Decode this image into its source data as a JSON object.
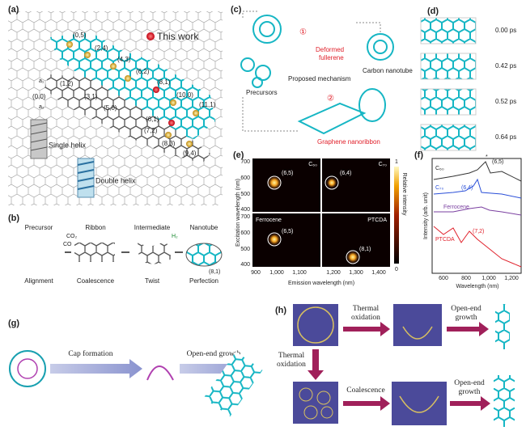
{
  "panel_a": {
    "label": "(a)",
    "legend": "This work",
    "chiralities": [
      "(0,5)",
      "(2,4)",
      "(4,3)",
      "(6,2)",
      "(8,1)",
      "(10,0)",
      "(11,1)",
      "(1,2)",
      "(3,1)",
      "(5,0)",
      "(6,1)",
      "(7,2)",
      "(8,3)",
      "(9,4)",
      "(0,0)"
    ],
    "basis": [
      "a₁",
      "a₂"
    ],
    "helix": [
      "Single helix",
      "Double helix"
    ]
  },
  "panel_b": {
    "label": "(b)",
    "stages": [
      "Precursor",
      "Ribbon",
      "Intermediate",
      "Nanotube"
    ],
    "steps": [
      "Alignment",
      "Coalescence",
      "Twist",
      "Perfection"
    ],
    "gases": [
      "CO₂",
      "CO",
      "H₂"
    ],
    "chirality": "(8,1)"
  },
  "panel_c": {
    "label": "(c)",
    "routes": [
      "①",
      "②"
    ],
    "deformed": [
      "Deformed",
      "fullerene"
    ],
    "mechanism": "Proposed mechanism",
    "precursors": "Precursors",
    "nanotube": "Carbon nanotube",
    "nanoribbon": "Graphene nanoribbon"
  },
  "panel_d": {
    "label": "(d)",
    "times": [
      "0.00 ps",
      "0.42 ps",
      "0.52 ps",
      "0.64 ps"
    ]
  },
  "panel_e": {
    "label": "(e)",
    "y_label": "Excitation wavelength (nm)",
    "x_label": "Emission wavelength (nm)",
    "colorbar_label": "Relative intensity",
    "colorbar_ticks": [
      1,
      0
    ],
    "yticks": [
      700,
      600,
      500,
      400
    ],
    "xticks": [
      "900",
      "1,000",
      "1,100",
      "1,200",
      "1,300",
      "1,400"
    ],
    "maps": [
      {
        "name": "C₆₀",
        "spot": "(6,5)"
      },
      {
        "name": "C₇₀",
        "spot": "(6,4)"
      },
      {
        "name": "Ferrocene",
        "spot": "(6,5)"
      },
      {
        "name": "PTCDA",
        "spot": "(8,1)"
      }
    ]
  },
  "panel_f": {
    "label": "(f)",
    "y_label": "Intensity (arb. unit)",
    "x_label": "Wavelength (nm)",
    "xticks": [
      "600",
      "800",
      "1,000",
      "1,200"
    ],
    "spectra": [
      "C₆₀",
      "C₇₀",
      "Ferrocene",
      "PTCDA"
    ],
    "peaks": [
      "(6,5)",
      "(6,4)",
      "(7,2)"
    ],
    "marker": "*"
  },
  "panel_g": {
    "label": "(g)",
    "steps": [
      "Cap formation",
      "Open-end growth"
    ]
  },
  "panel_h": {
    "label": "(h)",
    "steps": [
      [
        "Thermal",
        "oxidation"
      ],
      [
        "Open-end",
        "growth"
      ],
      [
        "Thermal",
        "oxidation"
      ],
      [
        "Coalescence"
      ],
      [
        "Open-end",
        "growth"
      ]
    ]
  }
}
